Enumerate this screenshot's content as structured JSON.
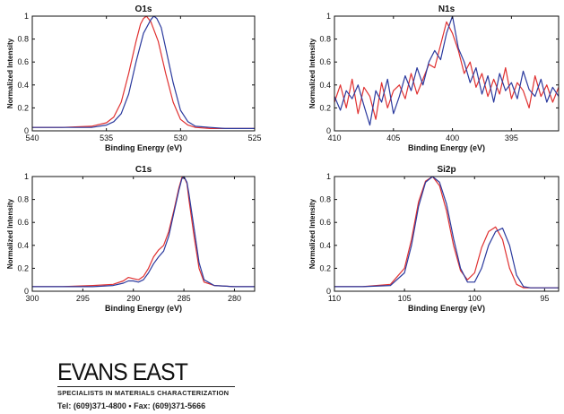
{
  "colors": {
    "red": "#e03030",
    "blue": "#2b3a9e",
    "axis": "#111111"
  },
  "chart_data": [
    {
      "type": "line",
      "title": "O1s",
      "xlabel": "Binding Energy (eV)",
      "ylabel": "Normalized Intensity",
      "xlim": [
        540,
        525
      ],
      "ylim": [
        0,
        1
      ],
      "xticks": [
        540,
        535,
        530,
        525
      ],
      "yticks": [
        0,
        0.2,
        0.4,
        0.6,
        0.8,
        1
      ],
      "series": [
        {
          "color": "red",
          "x": [
            540,
            538,
            536,
            535,
            534.5,
            534,
            533.5,
            533,
            532.7,
            532.5,
            532.3,
            532,
            531.5,
            531,
            530.5,
            530,
            529.5,
            529,
            528,
            527,
            525
          ],
          "y": [
            0.03,
            0.03,
            0.04,
            0.07,
            0.12,
            0.25,
            0.5,
            0.78,
            0.93,
            0.98,
            1.0,
            0.95,
            0.78,
            0.5,
            0.25,
            0.1,
            0.05,
            0.03,
            0.02,
            0.02,
            0.02
          ]
        },
        {
          "color": "blue",
          "x": [
            540,
            538,
            536,
            535,
            534.5,
            534,
            533.5,
            533,
            532.5,
            532,
            531.8,
            531.6,
            531.3,
            531,
            530.5,
            530,
            529.5,
            529,
            528,
            527,
            525
          ],
          "y": [
            0.03,
            0.03,
            0.03,
            0.05,
            0.08,
            0.15,
            0.32,
            0.6,
            0.85,
            0.97,
            1.0,
            0.98,
            0.9,
            0.72,
            0.42,
            0.18,
            0.08,
            0.04,
            0.03,
            0.02,
            0.02
          ]
        }
      ]
    },
    {
      "type": "line",
      "title": "N1s",
      "xlabel": "Binding Energy (eV)",
      "ylabel": "Normalized Intensity",
      "xlim": [
        410,
        391
      ],
      "ylim": [
        0,
        1
      ],
      "xticks": [
        410,
        405,
        400,
        395
      ],
      "yticks": [
        0,
        0.2,
        0.4,
        0.6,
        0.8,
        1
      ],
      "series": [
        {
          "color": "red",
          "x": [
            410,
            409.5,
            409,
            408.5,
            408,
            407.5,
            407,
            406.5,
            406,
            405.5,
            405,
            404.5,
            404,
            403.5,
            403,
            402.5,
            402,
            401.5,
            401,
            400.5,
            400,
            399.5,
            399,
            398.5,
            398,
            397.5,
            397,
            396.5,
            396,
            395.5,
            395,
            394.5,
            394,
            393.5,
            393,
            392.5,
            392,
            391.5,
            391
          ],
          "y": [
            0.25,
            0.4,
            0.2,
            0.45,
            0.15,
            0.38,
            0.3,
            0.1,
            0.42,
            0.2,
            0.35,
            0.4,
            0.28,
            0.5,
            0.32,
            0.45,
            0.58,
            0.55,
            0.75,
            0.95,
            0.85,
            0.7,
            0.5,
            0.6,
            0.38,
            0.5,
            0.3,
            0.45,
            0.32,
            0.55,
            0.28,
            0.42,
            0.35,
            0.2,
            0.48,
            0.3,
            0.4,
            0.25,
            0.38
          ]
        },
        {
          "color": "blue",
          "x": [
            410,
            409.5,
            409,
            408.5,
            408,
            407.5,
            407,
            406.5,
            406,
            405.5,
            405,
            404.5,
            404,
            403.5,
            403,
            402.5,
            402,
            401.5,
            401,
            400.5,
            400,
            399.5,
            399,
            398.5,
            398,
            397.5,
            397,
            396.5,
            396,
            395.5,
            395,
            394.5,
            394,
            393.5,
            393,
            392.5,
            392,
            391.5,
            391
          ],
          "y": [
            0.3,
            0.18,
            0.35,
            0.28,
            0.4,
            0.22,
            0.05,
            0.35,
            0.25,
            0.45,
            0.15,
            0.3,
            0.48,
            0.35,
            0.55,
            0.4,
            0.6,
            0.7,
            0.62,
            0.85,
            1.0,
            0.72,
            0.6,
            0.42,
            0.55,
            0.32,
            0.48,
            0.25,
            0.5,
            0.35,
            0.42,
            0.28,
            0.52,
            0.36,
            0.3,
            0.45,
            0.25,
            0.38,
            0.3
          ]
        }
      ]
    },
    {
      "type": "line",
      "title": "C1s",
      "xlabel": "Binding Energy (eV)",
      "ylabel": "Normalized Intensity",
      "xlim": [
        300,
        278
      ],
      "ylim": [
        0,
        1
      ],
      "xticks": [
        300,
        295,
        290,
        285,
        280
      ],
      "yticks": [
        0,
        0.2,
        0.4,
        0.6,
        0.8,
        1
      ],
      "series": [
        {
          "color": "red",
          "x": [
            300,
            297,
            294,
            292,
            291,
            290.5,
            290,
            289.5,
            289,
            288.5,
            288,
            287.5,
            287,
            286.5,
            286,
            285.5,
            285.2,
            285,
            284.7,
            284.5,
            284,
            283.5,
            283,
            282,
            280,
            278
          ],
          "y": [
            0.04,
            0.04,
            0.05,
            0.06,
            0.09,
            0.12,
            0.11,
            0.1,
            0.13,
            0.2,
            0.3,
            0.36,
            0.4,
            0.52,
            0.7,
            0.9,
            0.99,
            1.0,
            0.94,
            0.8,
            0.48,
            0.2,
            0.08,
            0.05,
            0.04,
            0.04
          ]
        },
        {
          "color": "blue",
          "x": [
            300,
            297,
            294,
            292,
            291,
            290.5,
            290,
            289.5,
            289,
            288.5,
            288,
            287.5,
            287,
            286.5,
            286,
            285.5,
            285.2,
            285,
            284.7,
            284.5,
            284,
            283.5,
            283,
            282,
            280,
            278
          ],
          "y": [
            0.04,
            0.04,
            0.04,
            0.05,
            0.07,
            0.09,
            0.09,
            0.08,
            0.1,
            0.16,
            0.24,
            0.3,
            0.35,
            0.48,
            0.68,
            0.88,
            0.98,
            1.0,
            0.95,
            0.85,
            0.55,
            0.25,
            0.1,
            0.05,
            0.04,
            0.04
          ]
        }
      ]
    },
    {
      "type": "line",
      "title": "Si2p",
      "xlabel": "Binding Energy (eV)",
      "ylabel": "Normalized Intensity",
      "xlim": [
        110,
        94
      ],
      "ylim": [
        0,
        1
      ],
      "xticks": [
        110,
        105,
        100,
        95
      ],
      "yticks": [
        0,
        0.2,
        0.4,
        0.6,
        0.8,
        1
      ],
      "series": [
        {
          "color": "red",
          "x": [
            110,
            108,
            106,
            105,
            104.5,
            104,
            103.5,
            103,
            102.5,
            102,
            101.5,
            101,
            100.5,
            100,
            99.5,
            99,
            98.5,
            98,
            97.5,
            97,
            96.5,
            96,
            95,
            94
          ],
          "y": [
            0.04,
            0.04,
            0.06,
            0.2,
            0.45,
            0.78,
            0.96,
            1.0,
            0.92,
            0.7,
            0.4,
            0.18,
            0.1,
            0.16,
            0.38,
            0.52,
            0.56,
            0.45,
            0.2,
            0.06,
            0.03,
            0.03,
            0.03,
            0.03
          ]
        },
        {
          "color": "blue",
          "x": [
            110,
            108,
            106,
            105,
            104.5,
            104,
            103.5,
            103,
            102.5,
            102,
            101.5,
            101,
            100.5,
            100,
            99.5,
            99,
            98.5,
            98,
            97.5,
            97,
            96.5,
            96,
            95,
            94
          ],
          "y": [
            0.04,
            0.04,
            0.05,
            0.16,
            0.4,
            0.74,
            0.95,
            1.0,
            0.95,
            0.76,
            0.46,
            0.2,
            0.08,
            0.08,
            0.2,
            0.4,
            0.52,
            0.55,
            0.4,
            0.14,
            0.04,
            0.03,
            0.03,
            0.03
          ]
        }
      ]
    }
  ],
  "logo": {
    "name": "EVANS EAST",
    "tagline": "SPECIALISTS IN MATERIALS CHARACTERIZATION",
    "tel": "Tel: (609)371-4800",
    "separator": "•",
    "fax": "Fax: (609)371-5666"
  }
}
